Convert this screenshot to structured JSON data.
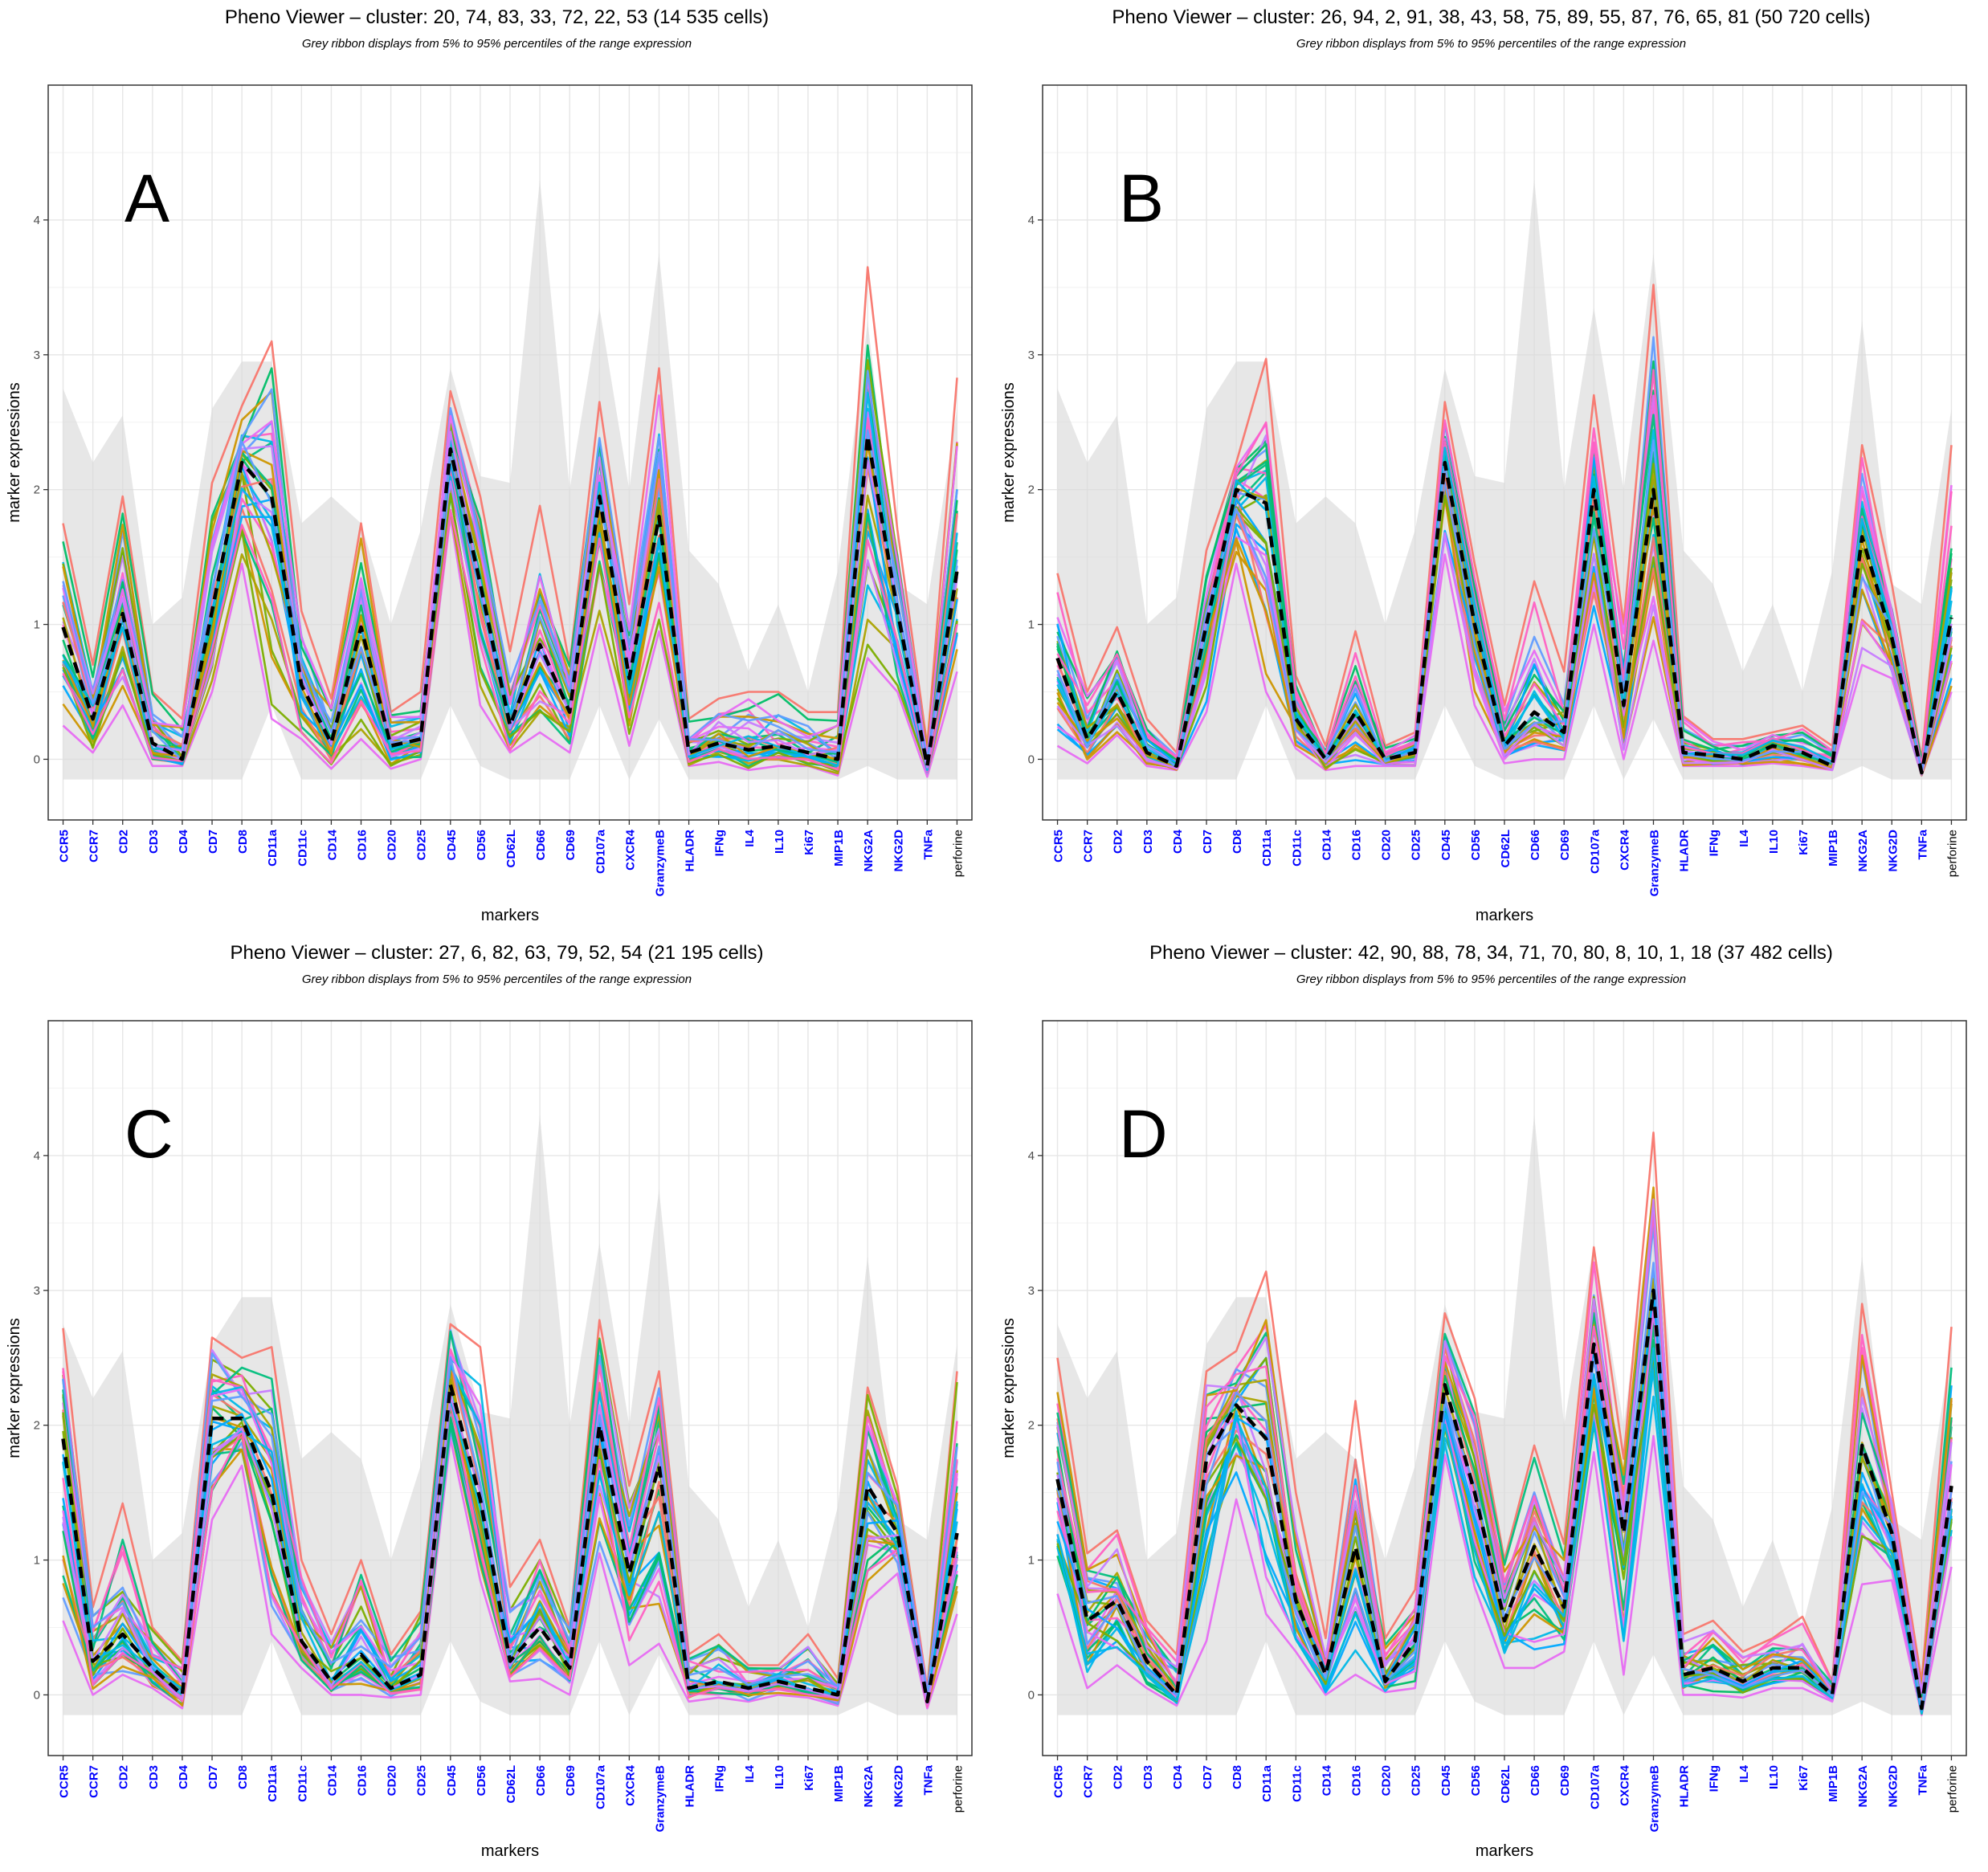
{
  "markers": [
    "CCR5",
    "CCR7",
    "CD2",
    "CD3",
    "CD4",
    "CD7",
    "CD8",
    "CD11a",
    "CD11c",
    "CD14",
    "CD16",
    "CD20",
    "CD25",
    "CD45",
    "CD56",
    "CD62L",
    "CD66",
    "CD69",
    "CD107a",
    "CXCR4",
    "GranzymeB",
    "HLADR",
    "IFNg",
    "IL4",
    "IL10",
    "Ki67",
    "MIP1B",
    "NKG2A",
    "NKG2D",
    "TNFa",
    "perforine"
  ],
  "marker_colors": {
    "bold_blue": "#0000ff",
    "plain_black": "#000000"
  },
  "palette": [
    "#f8766d",
    "#e76bf3",
    "#00a9ff",
    "#7cae00",
    "#00bf7d",
    "#cd9600",
    "#ff61c3",
    "#00b8e7",
    "#c77cff",
    "#619cff",
    "#00be67",
    "#aba300"
  ],
  "ribbon": {
    "color": "#d9d9d9",
    "low": [
      -0.15,
      -0.15,
      -0.15,
      -0.15,
      -0.15,
      -0.15,
      -0.15,
      0.4,
      -0.15,
      -0.15,
      -0.15,
      -0.15,
      -0.15,
      0.4,
      -0.05,
      -0.15,
      -0.15,
      -0.15,
      0.4,
      -0.15,
      0.3,
      -0.15,
      -0.15,
      -0.15,
      -0.15,
      -0.15,
      -0.15,
      -0.05,
      -0.15,
      -0.15,
      -0.15
    ],
    "high": [
      2.75,
      2.2,
      2.55,
      1.0,
      1.2,
      2.6,
      2.95,
      2.95,
      1.75,
      1.95,
      1.75,
      1.0,
      1.7,
      2.9,
      2.1,
      2.05,
      4.3,
      2.0,
      3.35,
      2.0,
      3.75,
      1.55,
      1.3,
      0.65,
      1.15,
      0.5,
      1.4,
      3.25,
      1.3,
      1.15,
      2.6
    ]
  },
  "panels": [
    {
      "title": "Pheno Viewer – cluster: 20, 74, 83, 33, 72, 22, 53 (14 535 cells)",
      "subtitle": "Grey ribbon displays from 5% to 95% percentiles of the range expression",
      "letter": "A",
      "xlabel": "markers",
      "ylabel": "marker expressions",
      "y_ticks": [
        0,
        1,
        2,
        3,
        4
      ],
      "ylim": [
        -0.45,
        5.0
      ],
      "chart_data": {
        "type": "line",
        "mean": [
          0.98,
          0.3,
          1.08,
          0.12,
          0.0,
          1.1,
          2.2,
          1.95,
          0.55,
          0.12,
          0.98,
          0.1,
          0.15,
          2.3,
          1.3,
          0.25,
          0.85,
          0.35,
          1.95,
          0.6,
          1.8,
          0.05,
          0.12,
          0.07,
          0.1,
          0.05,
          0.0,
          2.4,
          1.1,
          -0.05,
          1.4
        ],
        "upper": [
          1.75,
          0.7,
          1.95,
          0.5,
          0.3,
          2.05,
          2.62,
          3.1,
          1.1,
          0.45,
          1.75,
          0.35,
          0.5,
          2.73,
          1.95,
          0.8,
          1.88,
          0.7,
          2.65,
          1.15,
          2.9,
          0.3,
          0.45,
          0.5,
          0.5,
          0.35,
          0.35,
          3.65,
          1.7,
          0.1,
          2.83
        ],
        "lower": [
          0.25,
          0.05,
          0.4,
          -0.05,
          -0.05,
          0.5,
          1.45,
          0.3,
          0.15,
          -0.07,
          0.15,
          -0.07,
          0.0,
          1.8,
          0.4,
          0.05,
          0.2,
          0.05,
          1.0,
          0.1,
          0.95,
          -0.05,
          -0.02,
          -0.08,
          -0.05,
          -0.05,
          -0.12,
          0.75,
          0.5,
          -0.13,
          0.65
        ]
      }
    },
    {
      "title": "Pheno Viewer – cluster: 26, 94, 2, 91, 38, 43, 58, 75, 89, 55, 87, 76, 65, 81 (50 720 cells)",
      "subtitle": "Grey ribbon displays from 5% to 95% percentiles of the range expression",
      "letter": "B",
      "xlabel": "markers",
      "ylabel": "marker expressions",
      "y_ticks": [
        0,
        1,
        2,
        3,
        4
      ],
      "ylim": [
        -0.45,
        5.0
      ],
      "chart_data": {
        "type": "line",
        "mean": [
          0.75,
          0.15,
          0.5,
          0.05,
          -0.05,
          1.0,
          2.0,
          1.9,
          0.3,
          0.0,
          0.35,
          0.0,
          0.05,
          2.2,
          1.0,
          0.1,
          0.35,
          0.2,
          2.0,
          0.4,
          2.0,
          0.05,
          0.03,
          0.0,
          0.1,
          0.05,
          -0.05,
          1.65,
          0.9,
          -0.1,
          1.05
        ],
        "upper": [
          1.38,
          0.5,
          0.98,
          0.3,
          0.05,
          1.55,
          2.2,
          2.97,
          0.62,
          0.1,
          0.95,
          0.1,
          0.2,
          2.65,
          1.45,
          0.4,
          1.32,
          0.65,
          2.7,
          1.0,
          3.52,
          0.32,
          0.15,
          0.15,
          0.2,
          0.25,
          0.1,
          2.33,
          1.3,
          0.0,
          2.33
        ],
        "lower": [
          0.1,
          -0.03,
          0.18,
          -0.05,
          -0.08,
          0.35,
          1.45,
          0.5,
          0.08,
          -0.08,
          -0.05,
          -0.05,
          -0.05,
          1.52,
          0.4,
          -0.03,
          0.0,
          0.0,
          1.0,
          0.0,
          0.88,
          -0.05,
          -0.05,
          -0.05,
          -0.03,
          -0.05,
          -0.08,
          0.7,
          0.6,
          -0.12,
          0.5
        ]
      }
    },
    {
      "title": "Pheno Viewer – cluster: 27, 6, 82, 63, 79, 52, 54 (21 195 cells)",
      "subtitle": "Grey ribbon displays from 5% to 95% percentiles of the range expression",
      "letter": "C",
      "xlabel": "markers",
      "ylabel": "marker expressions",
      "y_ticks": [
        0,
        1,
        2,
        3,
        4
      ],
      "ylim": [
        -0.45,
        5.0
      ],
      "chart_data": {
        "type": "line",
        "mean": [
          1.9,
          0.25,
          0.45,
          0.2,
          0.0,
          2.05,
          2.05,
          1.5,
          0.4,
          0.1,
          0.3,
          0.05,
          0.15,
          2.3,
          1.45,
          0.25,
          0.5,
          0.2,
          2.0,
          0.9,
          1.7,
          0.05,
          0.1,
          0.05,
          0.1,
          0.05,
          0.0,
          1.55,
          1.2,
          -0.05,
          1.2
        ],
        "upper": [
          2.72,
          0.65,
          1.42,
          0.5,
          0.25,
          2.65,
          2.5,
          2.58,
          1.0,
          0.45,
          1.0,
          0.3,
          0.62,
          2.75,
          2.58,
          0.8,
          1.15,
          0.5,
          2.78,
          1.55,
          2.4,
          0.3,
          0.45,
          0.22,
          0.22,
          0.45,
          0.12,
          2.28,
          1.55,
          0.05,
          2.4
        ],
        "lower": [
          0.55,
          0.0,
          0.15,
          0.05,
          -0.1,
          1.3,
          1.7,
          0.45,
          0.2,
          0.0,
          0.0,
          -0.02,
          0.0,
          1.9,
          0.85,
          0.1,
          0.12,
          0.0,
          1.05,
          0.22,
          0.38,
          -0.05,
          -0.02,
          -0.05,
          0.0,
          -0.02,
          -0.08,
          0.7,
          0.9,
          -0.1,
          0.6
        ]
      }
    },
    {
      "title": "Pheno Viewer – cluster: 42, 90, 88, 78, 34, 71, 70, 80, 8, 10, 1, 18 (37 482 cells)",
      "subtitle": "Grey ribbon displays from 5% to 95% percentiles of the range expression",
      "letter": "D",
      "xlabel": "markers",
      "ylabel": "marker expressions",
      "y_ticks": [
        0,
        1,
        2,
        3,
        4
      ],
      "ylim": [
        -0.45,
        5.0
      ],
      "chart_data": {
        "type": "line",
        "mean": [
          1.6,
          0.55,
          0.7,
          0.25,
          0.0,
          1.75,
          2.15,
          1.9,
          0.7,
          0.15,
          1.1,
          0.1,
          0.4,
          2.3,
          1.5,
          0.55,
          1.1,
          0.65,
          2.6,
          1.2,
          3.0,
          0.15,
          0.2,
          0.1,
          0.2,
          0.2,
          0.0,
          1.85,
          1.2,
          -0.1,
          1.55
        ],
        "upper": [
          2.5,
          1.05,
          1.22,
          0.55,
          0.3,
          2.4,
          2.55,
          3.14,
          1.5,
          0.42,
          2.18,
          0.42,
          0.78,
          2.83,
          2.2,
          1.0,
          1.85,
          1.12,
          3.32,
          1.75,
          4.17,
          0.45,
          0.55,
          0.32,
          0.42,
          0.58,
          0.1,
          2.9,
          1.5,
          0.1,
          2.73
        ],
        "lower": [
          0.75,
          0.05,
          0.22,
          0.05,
          -0.08,
          0.4,
          1.45,
          0.6,
          0.32,
          0.0,
          0.15,
          0.02,
          0.05,
          1.78,
          0.8,
          0.2,
          0.2,
          0.32,
          1.8,
          0.15,
          1.92,
          0.0,
          0.0,
          -0.02,
          0.05,
          0.05,
          -0.05,
          0.82,
          0.85,
          -0.15,
          0.95
        ]
      }
    }
  ]
}
